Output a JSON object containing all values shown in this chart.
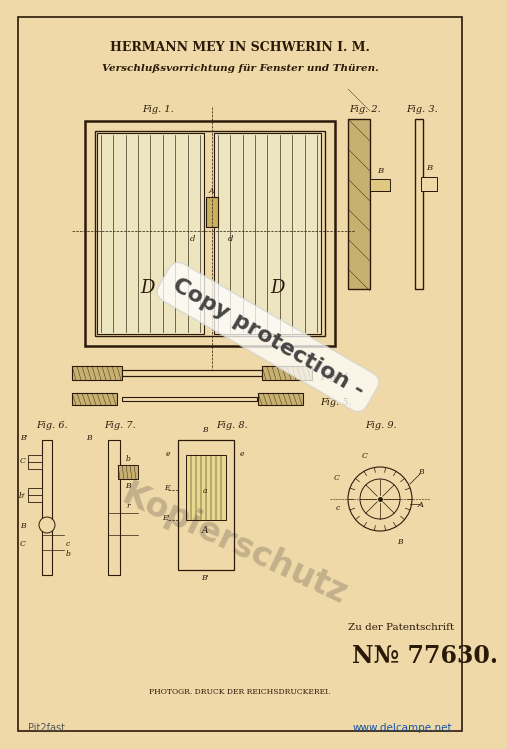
{
  "bg_color": "#f5e6c8",
  "border_color": "#3a2a1a",
  "title1": "HERMANN MEY IN SCHWERIN I. M.",
  "title2": "Verschlußsvorrichtung für Fenster und Thüren.",
  "patent_label": "Zu der Patentschrift",
  "patent_number": "N№ 77630.",
  "footer": "PHOTOGR. DRUCK DER REICHSDRUCKEREI.",
  "watermark1": "Copy protection -",
  "watermark2": "Kopierschutz",
  "ink_color": "#2a1a0a",
  "light_ink": "#4a3a2a",
  "page_bg": "#f0d9a8",
  "hatch_color": "#c8b070"
}
